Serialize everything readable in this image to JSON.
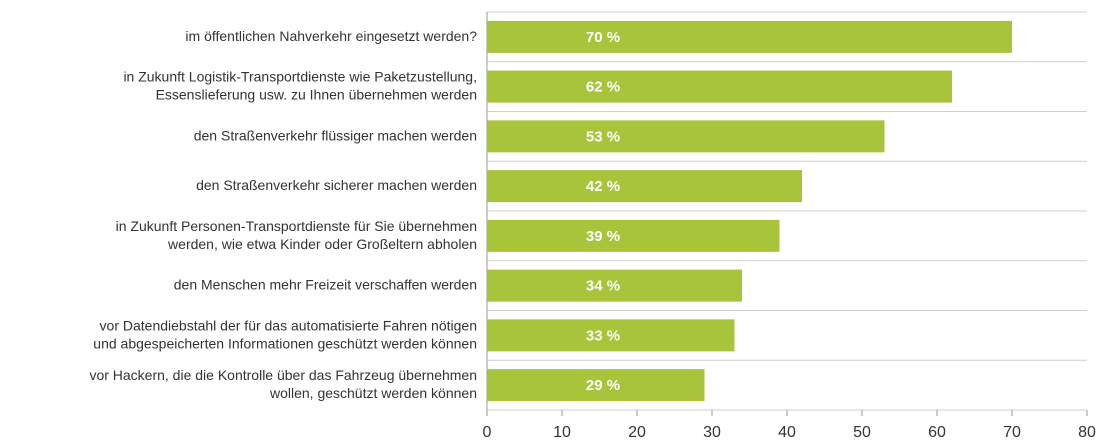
{
  "chart_data": {
    "type": "bar",
    "categories": [
      [
        "im öffentlichen Nahverkehr eingesetzt werden?"
      ],
      [
        "in Zukunft Logistik-Transportdienste wie Paketzustellung,",
        "Essenslieferung usw. zu Ihnen übernehmen werden"
      ],
      [
        "den Straßenverkehr flüssiger machen werden"
      ],
      [
        "den Straßenverkehr sicherer machen werden"
      ],
      [
        "in Zukunft Personen-Transportdienste für Sie übernehmen",
        "werden, wie etwa Kinder oder Großeltern abholen"
      ],
      [
        "den Menschen mehr Freizeit verschaffen werden"
      ],
      [
        "vor Datendiebstahl der für das automatisierte Fahren nötigen",
        "und abgespeicherten Informationen geschützt werden können"
      ],
      [
        "vor Hackern, die die Kontrolle über das Fahrzeug übernehmen",
        "wollen, geschützt werden können"
      ]
    ],
    "values": [
      70,
      62,
      53,
      42,
      39,
      34,
      33,
      29
    ],
    "value_labels": [
      "70 %",
      "62 %",
      "53 %",
      "42 %",
      "39 %",
      "34 %",
      "33 %",
      "29 %"
    ],
    "color": "#a8c43a",
    "xlim": [
      0,
      80
    ],
    "xticks": [
      0,
      10,
      20,
      30,
      40,
      50,
      60,
      70,
      80
    ]
  }
}
